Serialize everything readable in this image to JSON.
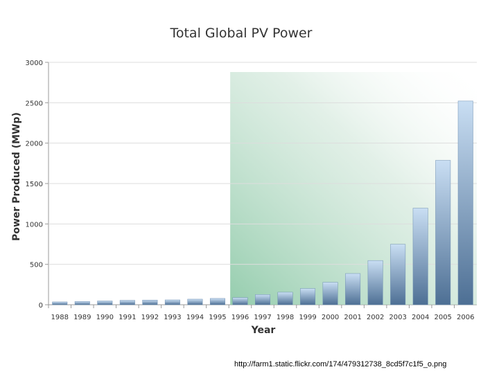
{
  "chart_data": {
    "type": "bar",
    "title": "Total Global PV Power",
    "xlabel": "Year",
    "ylabel": "Power Produced (MWp)",
    "ylim": [
      0,
      3000
    ],
    "yticks": [
      "0",
      "500",
      "1000",
      "1500",
      "2000",
      "2500",
      "3000"
    ],
    "grid": true,
    "categories": [
      "1988",
      "1989",
      "1990",
      "1991",
      "1992",
      "1993",
      "1994",
      "1995",
      "1996",
      "1997",
      "1998",
      "1999",
      "2000",
      "2001",
      "2002",
      "2003",
      "2004",
      "2005",
      "2006"
    ],
    "values": [
      35,
      40,
      47,
      55,
      58,
      60,
      69,
      78,
      89,
      126,
      155,
      201,
      278,
      386,
      547,
      748,
      1195,
      1787,
      2521
    ],
    "highlight_start_category": "1996",
    "colors": {
      "bar_light": "#c9def3",
      "bar_dark": "#4d6f94",
      "shade": "#8fcaa9"
    }
  },
  "footer": {
    "source_url": "http://farm1.static.flickr.com/174/479312738_8cd5f7c1f5_o.png"
  }
}
